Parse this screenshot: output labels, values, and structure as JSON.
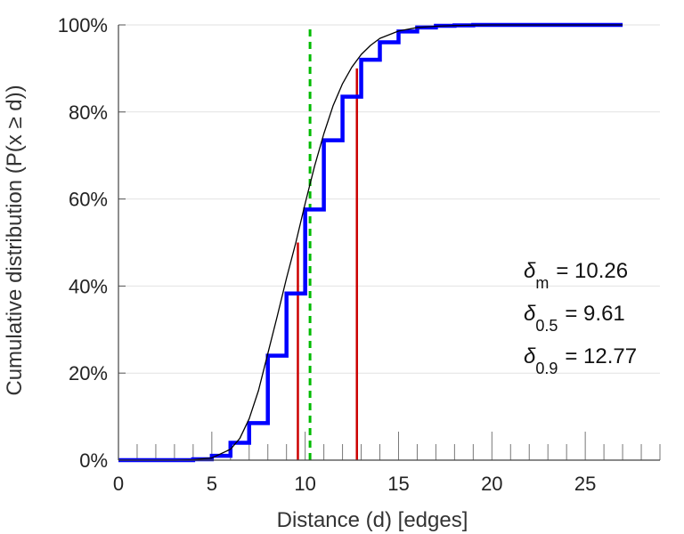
{
  "chart_data": {
    "type": "line",
    "xlabel": "Distance (d) [edges]",
    "ylabel": "Cumulative distribution (P(x ≥ d))",
    "xlim": [
      0,
      29
    ],
    "ylim": [
      0,
      100
    ],
    "x_ticks": [
      0,
      5,
      10,
      15,
      20,
      25
    ],
    "x_minor_step": 1,
    "y_ticks": [
      0,
      20,
      40,
      60,
      80,
      100
    ],
    "y_tick_labels": [
      "0%",
      "20%",
      "40%",
      "60%",
      "80%",
      "100%"
    ],
    "grid": true,
    "series": [
      {
        "kind": "step",
        "color": "#0000ff",
        "x": [
          0,
          4,
          5,
          6,
          7,
          8,
          9,
          10,
          11,
          12,
          13,
          14,
          15,
          16,
          17,
          18,
          19,
          20,
          27
        ],
        "y": [
          0,
          0.2,
          1,
          4,
          8.5,
          24,
          38.3,
          57.6,
          73.5,
          83.5,
          92,
          96,
          98.5,
          99.4,
          99.8,
          99.9,
          100,
          100,
          100
        ]
      },
      {
        "kind": "smooth",
        "color": "#000000",
        "x": [
          0,
          1,
          2,
          3,
          4,
          5,
          6,
          6.5,
          7,
          7.5,
          8,
          8.5,
          9,
          9.5,
          10,
          10.5,
          11,
          11.5,
          12,
          12.5,
          13,
          13.5,
          14,
          15,
          16,
          17,
          18,
          19,
          20,
          22,
          24,
          27
        ],
        "y": [
          0,
          0,
          0,
          0,
          0.1,
          0.5,
          2.5,
          5,
          9.5,
          16,
          24.5,
          33,
          41.8,
          50,
          59,
          67.5,
          75,
          81.5,
          86.5,
          90.3,
          93.2,
          95.3,
          96.9,
          98.6,
          99.4,
          99.7,
          99.85,
          99.95,
          100,
          100,
          100,
          100
        ]
      }
    ],
    "vertical_lines": [
      {
        "x": 9.61,
        "y_top": 50,
        "color": "#cc0000",
        "style": "solid"
      },
      {
        "x": 12.77,
        "y_top": 90,
        "color": "#cc0000",
        "style": "solid"
      },
      {
        "x": 10.26,
        "y_top": 100,
        "color": "#00bb00",
        "style": "dashed"
      }
    ],
    "annotations": [
      {
        "symbol": "δ",
        "sub": "m",
        "text": "= 10.26"
      },
      {
        "symbol": "δ",
        "sub": "0.5",
        "text": "= 9.61"
      },
      {
        "symbol": "δ",
        "sub": "0.9",
        "text": "= 12.77"
      }
    ]
  }
}
